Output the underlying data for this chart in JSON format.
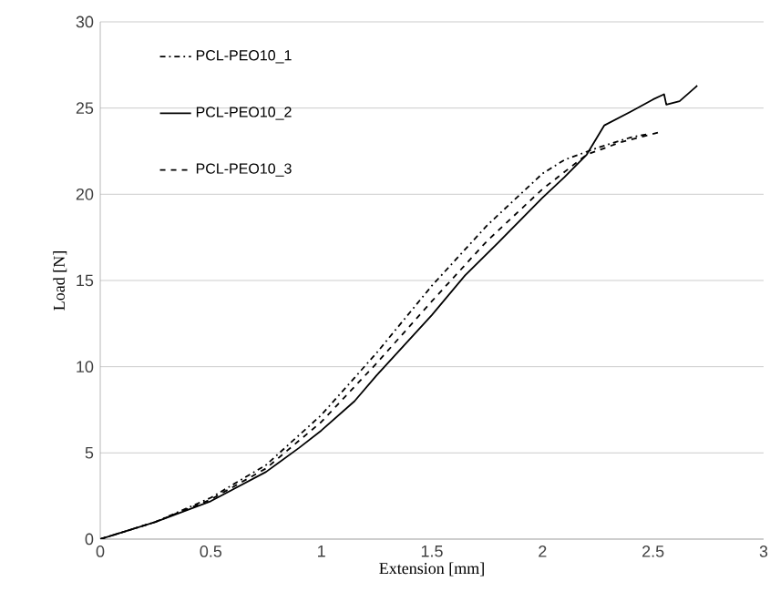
{
  "chart_data": {
    "type": "line",
    "xlabel": "Extension [mm]",
    "ylabel": "Load [N]",
    "xlim": [
      0,
      3
    ],
    "ylim": [
      0,
      30
    ],
    "xticks": [
      0,
      0.5,
      1,
      1.5,
      2,
      2.5,
      3
    ],
    "yticks": [
      0,
      5,
      10,
      15,
      20,
      25,
      30
    ],
    "grid": "y",
    "legend": "top left",
    "marker": "none",
    "series": [
      {
        "name": "PCL-PEO10_1",
        "color": "#000000",
        "line_style": "dashdot",
        "x": [
          0,
          0.25,
          0.5,
          0.75,
          1.0,
          1.25,
          1.5,
          1.75,
          2.0,
          2.1,
          2.25,
          2.4,
          2.48
        ],
        "values": [
          0,
          1,
          2.4,
          4.3,
          7.2,
          10.8,
          14.7,
          18.2,
          21.2,
          22,
          22.7,
          23.3,
          23.5
        ]
      },
      {
        "name": "PCL-PEO10_2",
        "color": "#000000",
        "line_style": "solid",
        "x": [
          0,
          0.25,
          0.5,
          0.75,
          0.9,
          1.0,
          1.15,
          1.25,
          1.5,
          1.65,
          1.8,
          2.0,
          2.1,
          2.2,
          2.28,
          2.4,
          2.5,
          2.55,
          2.56,
          2.62,
          2.7
        ],
        "values": [
          0,
          1,
          2.2,
          3.9,
          5.3,
          6.3,
          8.0,
          9.5,
          13,
          15.3,
          17.2,
          19.8,
          21,
          22.3,
          24,
          24.8,
          25.5,
          25.8,
          25.2,
          25.4,
          26.3
        ]
      },
      {
        "name": "PCL-PEO10_3",
        "color": "#000000",
        "line_style": "dashed",
        "x": [
          0,
          0.25,
          0.5,
          0.75,
          1.0,
          1.25,
          1.5,
          1.75,
          2.0,
          2.2,
          2.35,
          2.53
        ],
        "values": [
          0,
          1,
          2.3,
          4.1,
          6.8,
          10.2,
          13.8,
          17.3,
          20.3,
          22.3,
          23,
          23.6
        ]
      }
    ]
  }
}
